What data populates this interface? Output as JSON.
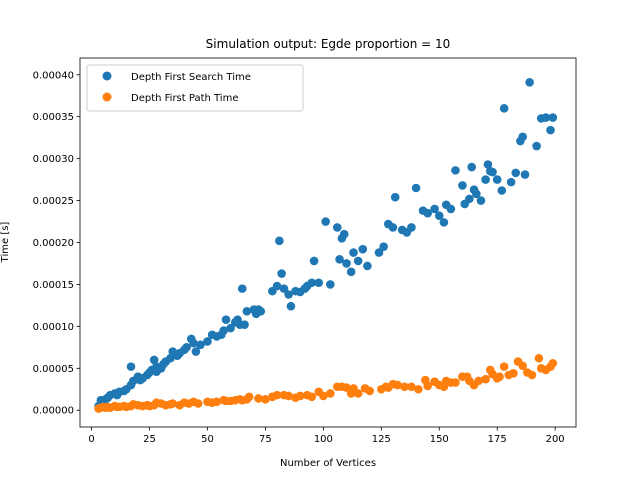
{
  "chart_data": {
    "type": "scatter",
    "title": "Simulation output: Egde proportion = 10",
    "xlabel": "Number of Vertices",
    "ylabel": "Time [s]",
    "xlim": [
      -5,
      209
    ],
    "ylim": [
      -2e-05,
      0.00042
    ],
    "xticks": [
      0,
      25,
      50,
      75,
      100,
      125,
      150,
      175,
      200
    ],
    "yticks": [
      0.0,
      5e-05,
      0.0001,
      0.00015,
      0.0002,
      0.00025,
      0.0003,
      0.00035,
      0.0004
    ],
    "ytick_labels": [
      "0.00000",
      "0.00005",
      "0.00010",
      "0.00015",
      "0.00020",
      "0.00025",
      "0.00030",
      "0.00035",
      "0.00040"
    ],
    "grid": false,
    "legend": "top-left",
    "series": [
      {
        "name": "Depth First Search Time",
        "color": "#1f77b4",
        "x": [
          3,
          4,
          5,
          6,
          7,
          8,
          10,
          11,
          12,
          14,
          15,
          17,
          17,
          18,
          20,
          21,
          22,
          24,
          25,
          26,
          27,
          28,
          28,
          30,
          31,
          32,
          34,
          35,
          37,
          38,
          40,
          41,
          43,
          44,
          45,
          47,
          50,
          52,
          54,
          56,
          57,
          58,
          60,
          62,
          63,
          64,
          65,
          66,
          67,
          70,
          71,
          72,
          73,
          78,
          80,
          81,
          82,
          83,
          85,
          86,
          88,
          90,
          92,
          93,
          95,
          96,
          98,
          101,
          103,
          106,
          107,
          108,
          109,
          110,
          112,
          113,
          115,
          117,
          119,
          124,
          126,
          128,
          130,
          131,
          134,
          136,
          138,
          140,
          143,
          145,
          148,
          150,
          152,
          153,
          155,
          157,
          160,
          161,
          163,
          164,
          165,
          166,
          168,
          170,
          171,
          172,
          173,
          175,
          177,
          178,
          181,
          183,
          185,
          186,
          187,
          189,
          192,
          194,
          196,
          198,
          199
        ],
        "y": [
          5e-06,
          1.2e-05,
          1e-05,
          1.3e-05,
          1.5e-05,
          1.8e-05,
          2e-05,
          1.8e-05,
          2.2e-05,
          2.3e-05,
          2.5e-05,
          5.2e-05,
          3e-05,
          3.5e-05,
          4e-05,
          3.6e-05,
          3.8e-05,
          4.2e-05,
          4.5e-05,
          4.8e-05,
          6e-05,
          5.2e-05,
          4.6e-05,
          5e-05,
          5.5e-05,
          5.8e-05,
          6.2e-05,
          7e-05,
          6.5e-05,
          6.8e-05,
          7.2e-05,
          7.5e-05,
          8.5e-05,
          8e-05,
          7e-05,
          7.8e-05,
          8.2e-05,
          9e-05,
          8.8e-05,
          9e-05,
          9.5e-05,
          0.000108,
          9.8e-05,
          0.000105,
          0.000108,
          0.000102,
          0.000145,
          0.000102,
          0.000118,
          0.00012,
          0.000115,
          0.00012,
          0.000118,
          0.000142,
          0.000148,
          0.000202,
          0.000163,
          0.000145,
          0.000138,
          0.000124,
          0.000142,
          0.000141,
          0.000145,
          0.000148,
          0.000152,
          0.000178,
          0.000152,
          0.000225,
          0.00015,
          0.000218,
          0.00018,
          0.000205,
          0.00021,
          0.000175,
          0.000165,
          0.000188,
          0.000178,
          0.000192,
          0.000172,
          0.000188,
          0.000195,
          0.000222,
          0.000218,
          0.000254,
          0.000215,
          0.000212,
          0.000218,
          0.000265,
          0.000238,
          0.000235,
          0.00024,
          0.000232,
          0.000224,
          0.000245,
          0.00024,
          0.000286,
          0.000268,
          0.000246,
          0.000252,
          0.00029,
          0.000263,
          0.000258,
          0.00025,
          0.000275,
          0.000293,
          0.000285,
          0.000284,
          0.000275,
          0.000262,
          0.00036,
          0.000272,
          0.000283,
          0.000321,
          0.000326,
          0.000281,
          0.000391,
          0.000315,
          0.000348,
          0.000349,
          0.000334,
          0.000349
        ]
      },
      {
        "name": "Depth First Path Time",
        "color": "#ff7f0e",
        "x": [
          3,
          4,
          5,
          6,
          7,
          8,
          10,
          11,
          12,
          14,
          15,
          17,
          18,
          20,
          22,
          24,
          25,
          27,
          28,
          30,
          32,
          34,
          35,
          38,
          40,
          42,
          44,
          46,
          50,
          52,
          54,
          57,
          58,
          60,
          62,
          64,
          65,
          67,
          68,
          72,
          75,
          78,
          80,
          83,
          85,
          88,
          90,
          93,
          95,
          98,
          100,
          103,
          106,
          108,
          110,
          112,
          113,
          115,
          118,
          120,
          125,
          127,
          128,
          130,
          132,
          135,
          138,
          141,
          144,
          145,
          148,
          150,
          152,
          153,
          155,
          157,
          160,
          162,
          163,
          165,
          167,
          170,
          172,
          173,
          175,
          176,
          178,
          180,
          182,
          184,
          186,
          188,
          190,
          193,
          194,
          196,
          198,
          199
        ],
        "y": [
          2e-06,
          3e-06,
          4e-06,
          3e-06,
          4e-06,
          3e-06,
          5e-06,
          4e-06,
          4e-06,
          5e-06,
          4e-06,
          5e-06,
          7e-06,
          6e-06,
          5e-06,
          6e-06,
          5e-06,
          6e-06,
          9e-06,
          8e-06,
          6e-06,
          7e-06,
          8e-06,
          6e-06,
          9e-06,
          8e-06,
          1e-05,
          8e-06,
          1e-05,
          9e-06,
          1e-05,
          1.2e-05,
          1.1e-05,
          1.1e-05,
          1.2e-05,
          1.3e-05,
          1.2e-05,
          1.3e-05,
          1.6e-05,
          1.4e-05,
          1.3e-05,
          1.6e-05,
          1.8e-05,
          1.8e-05,
          1.7e-05,
          1.5e-05,
          1.7e-05,
          1.8e-05,
          1.6e-05,
          2.2e-05,
          1.7e-05,
          2e-05,
          2.8e-05,
          2.8e-05,
          2.7e-05,
          2e-05,
          2.6e-05,
          2e-05,
          2.6e-05,
          2.3e-05,
          2.5e-05,
          2.8e-05,
          2.7e-05,
          3.1e-05,
          3e-05,
          2.8e-05,
          2.8e-05,
          2.5e-05,
          3.6e-05,
          2.9e-05,
          3.4e-05,
          3e-05,
          2.8e-05,
          3.5e-05,
          3.3e-05,
          3.3e-05,
          4e-05,
          4e-05,
          3.5e-05,
          3e-05,
          3.5e-05,
          3.7e-05,
          4.8e-05,
          4.3e-05,
          3.8e-05,
          4e-05,
          5.2e-05,
          4.2e-05,
          4.4e-05,
          5.8e-05,
          5.3e-05,
          4.5e-05,
          4.2e-05,
          6.2e-05,
          5e-05,
          4.8e-05,
          5.2e-05,
          5.6e-05
        ]
      }
    ]
  }
}
